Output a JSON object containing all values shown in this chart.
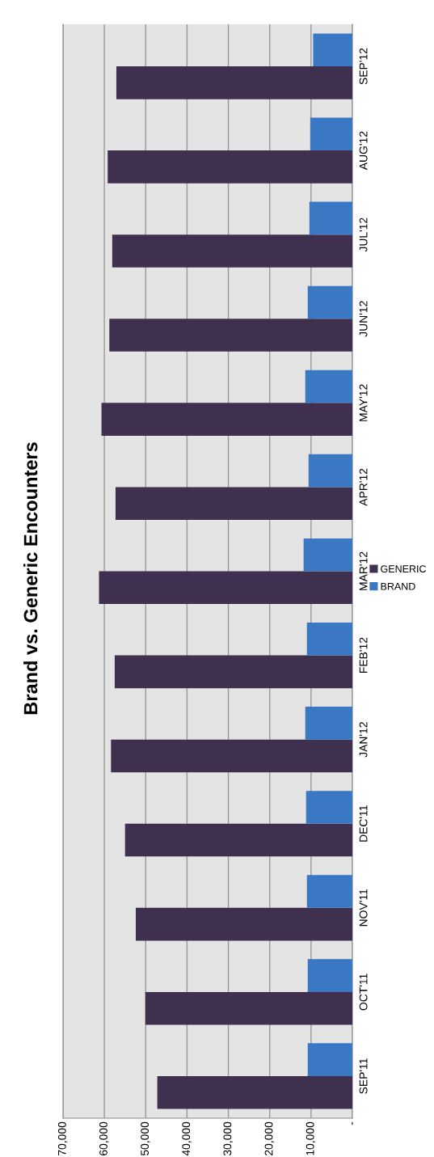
{
  "chart_data": {
    "type": "bar",
    "orientation": "horizontal",
    "title": "Brand vs. Generic Encounters",
    "categories": [
      "SEP'12",
      "AUG'12",
      "JUL'12",
      "JUN'12",
      "MAY'12",
      "APR'12",
      "MAR'12",
      "FEB'12",
      "JAN'12",
      "DEC'11",
      "NOV'11",
      "OCT'11",
      "SEP'11"
    ],
    "series": [
      {
        "name": "GENERIC",
        "color": "#3f3050",
        "values": [
          57100,
          59200,
          58100,
          58800,
          60700,
          57300,
          61300,
          57500,
          58400,
          55000,
          52400,
          50100,
          47200
        ]
      },
      {
        "name": "BRAND",
        "color": "#3a78c4",
        "values": [
          9500,
          10200,
          10400,
          10800,
          11400,
          10600,
          11800,
          11000,
          11400,
          11200,
          11000,
          10800,
          10800
        ]
      }
    ],
    "xlim": [
      70000,
      0
    ],
    "xticks": [
      {
        "value": 70000,
        "label": "70,000"
      },
      {
        "value": 60000,
        "label": "60,000"
      },
      {
        "value": 50000,
        "label": "50,000"
      },
      {
        "value": 40000,
        "label": "40,000"
      },
      {
        "value": 30000,
        "label": "30,000"
      },
      {
        "value": 20000,
        "label": "20,000"
      },
      {
        "value": 10000,
        "label": "10,000"
      },
      {
        "value": 0,
        "label": "-"
      }
    ],
    "grid": "x",
    "legend": "right"
  }
}
